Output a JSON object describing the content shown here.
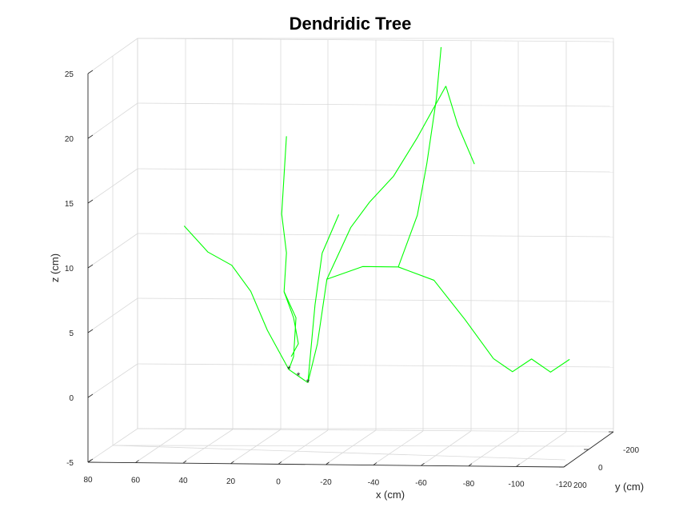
{
  "chart_data": {
    "type": "line",
    "title": "Dendridic Tree",
    "xlabel": "x (cm)",
    "ylabel": "y (cm)",
    "zlabel": "z (cm)",
    "x_ticks": [
      "80",
      "60",
      "40",
      "20",
      "0",
      "-20",
      "-40",
      "-60",
      "-80",
      "-100",
      "-120"
    ],
    "y_ticks": [
      "-200",
      "0",
      "200"
    ],
    "z_ticks": [
      "-5",
      "0",
      "5",
      "10",
      "15",
      "20",
      "25"
    ],
    "xlim": [
      80,
      -120
    ],
    "ylim": [
      -200,
      200
    ],
    "zlim": [
      -5,
      25
    ],
    "grid": true,
    "view": "3d",
    "colors": {
      "branch": "#00ff00",
      "root_marker": "#ff0000"
    },
    "series": [
      {
        "points": [
          [
            6,
            0,
            1
          ],
          [
            2,
            0,
            0.5
          ],
          [
            -2,
            0,
            0
          ]
        ]
      },
      {
        "points": [
          [
            6,
            0,
            1
          ],
          [
            4,
            0,
            2
          ],
          [
            3,
            0,
            5
          ],
          [
            8,
            0,
            7
          ],
          [
            7,
            0,
            10
          ],
          [
            9,
            0,
            13
          ],
          [
            8,
            0,
            16
          ],
          [
            7,
            0,
            19
          ]
        ]
      },
      {
        "points": [
          [
            -2,
            0,
            0
          ],
          [
            -6,
            0,
            3
          ],
          [
            -10,
            0,
            8
          ],
          [
            -20,
            0,
            12
          ],
          [
            -28,
            0,
            14
          ],
          [
            -38,
            0,
            16
          ],
          [
            -48,
            0,
            19
          ],
          [
            -60,
            0,
            23
          ]
        ]
      },
      {
        "points": [
          [
            -2,
            0,
            0
          ],
          [
            -5,
            0,
            6
          ],
          [
            -8,
            0,
            10
          ],
          [
            -15,
            0,
            13
          ]
        ]
      },
      {
        "points": [
          [
            -10,
            0,
            8
          ],
          [
            -25,
            0,
            9
          ],
          [
            -40,
            0,
            9
          ],
          [
            -55,
            0,
            8
          ],
          [
            -68,
            0,
            5
          ],
          [
            -80,
            0,
            2
          ]
        ]
      },
      {
        "points": [
          [
            6,
            0,
            1
          ],
          [
            15,
            0,
            4
          ],
          [
            22,
            0,
            7
          ],
          [
            30,
            0,
            9
          ],
          [
            40,
            0,
            10
          ],
          [
            50,
            0,
            12
          ]
        ]
      },
      {
        "points": [
          [
            -60,
            0,
            23
          ],
          [
            -65,
            0,
            20
          ],
          [
            -72,
            0,
            17
          ]
        ]
      },
      {
        "points": [
          [
            -40,
            0,
            9
          ],
          [
            -48,
            0,
            13
          ],
          [
            -52,
            0,
            17
          ],
          [
            -56,
            0,
            22
          ],
          [
            -58,
            0,
            26
          ]
        ]
      },
      {
        "points": [
          [
            -80,
            0,
            2
          ],
          [
            -88,
            0,
            1
          ],
          [
            -96,
            0,
            2
          ],
          [
            -104,
            0,
            1
          ],
          [
            -112,
            0,
            2
          ]
        ]
      },
      {
        "points": [
          [
            8,
            0,
            7
          ],
          [
            4,
            0,
            5
          ],
          [
            2,
            0,
            3
          ],
          [
            5,
            0,
            2
          ]
        ]
      }
    ]
  }
}
